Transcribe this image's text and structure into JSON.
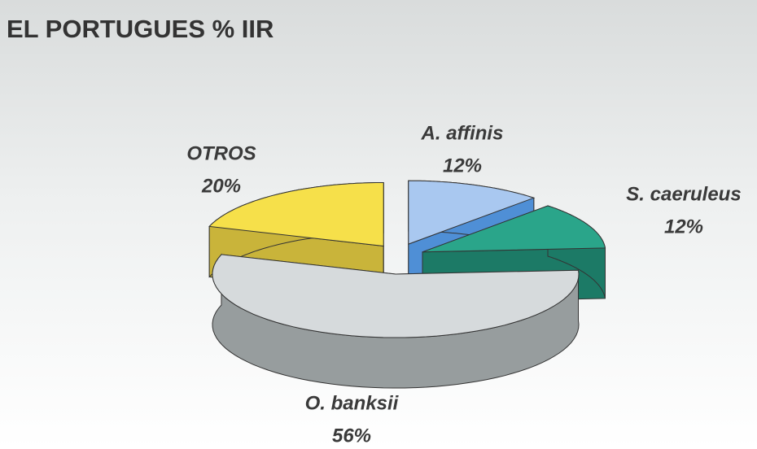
{
  "chart_data": {
    "type": "pie3d",
    "title": "EL PORTUGUES % IIR",
    "categories": [
      "A. affinis",
      "S. caeruleus",
      "O. banksii",
      "OTROS"
    ],
    "values": [
      12,
      12,
      56,
      20
    ],
    "value_labels": [
      "12%",
      "12%",
      "56%",
      "20%"
    ],
    "colors": [
      "#a9c8f0",
      "#2aa58a",
      "#d6dadc",
      "#f6e04a"
    ],
    "side_colors": [
      "#4f8fd6",
      "#1c7a66",
      "#979d9e",
      "#c9b43a"
    ]
  }
}
